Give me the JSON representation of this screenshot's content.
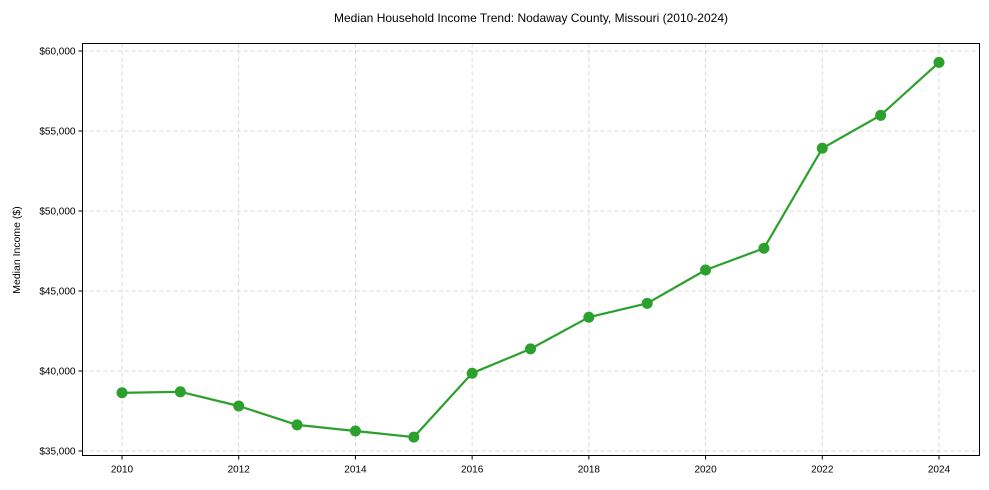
{
  "chart_data": {
    "type": "line",
    "title": "Median Household Income Trend: Nodaway County, Missouri (2010-2024)",
    "xlabel": "",
    "ylabel": "Median Income ($)",
    "x": [
      2010,
      2011,
      2012,
      2013,
      2014,
      2015,
      2016,
      2017,
      2018,
      2019,
      2020,
      2021,
      2022,
      2023,
      2024
    ],
    "series": [
      {
        "name": "Median Household Income",
        "color": "#2ca02c",
        "marker": "circle",
        "values": [
          38640,
          38700,
          37810,
          36630,
          36250,
          35870,
          39860,
          41380,
          43360,
          44230,
          46310,
          47670,
          53920,
          55980,
          59290
        ]
      }
    ],
    "xticks": [
      2010,
      2012,
      2014,
      2016,
      2018,
      2020,
      2022,
      2024
    ],
    "xtick_labels": [
      "2010",
      "2012",
      "2014",
      "2016",
      "2018",
      "2020",
      "2022",
      "2024"
    ],
    "yticks": [
      35000,
      40000,
      45000,
      50000,
      55000,
      60000
    ],
    "ytick_labels": [
      "$35,000",
      "$40,000",
      "$45,000",
      "$50,000",
      "$55,000",
      "$60,000"
    ],
    "xlim": [
      2009.3,
      2024.7
    ],
    "ylim": [
      34680,
      60500
    ],
    "grid": true,
    "grid_style": "dashed",
    "legend": false
  }
}
